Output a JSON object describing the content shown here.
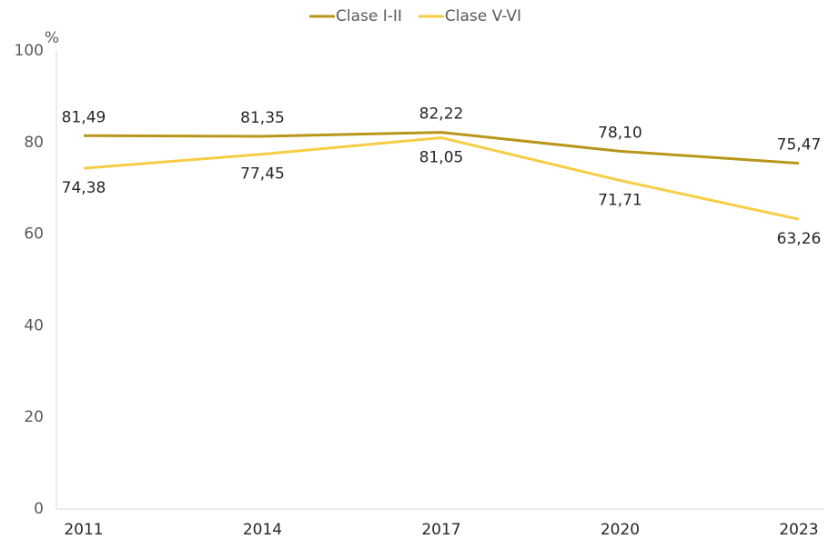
{
  "chart_data": {
    "type": "line",
    "y_unit": "%",
    "categories": [
      "2011",
      "2014",
      "2017",
      "2020",
      "2023"
    ],
    "series": [
      {
        "name": "Clase I-II",
        "color": "#b8961a",
        "values": [
          81.49,
          81.35,
          82.22,
          78.1,
          75.47
        ],
        "value_labels": [
          "81,49",
          "81,35",
          "82,22",
          "78,10",
          "75,47"
        ]
      },
      {
        "name": "Clase V-VI",
        "color": "#f7cd45",
        "values": [
          74.38,
          77.45,
          81.05,
          71.71,
          63.26
        ],
        "value_labels": [
          "74,38",
          "77,45",
          "81,05",
          "71,71",
          "63,26"
        ]
      }
    ],
    "ylim": [
      0,
      100
    ],
    "yticks": [
      0,
      20,
      40,
      60,
      80,
      100
    ],
    "grid": false,
    "legend": "top"
  }
}
